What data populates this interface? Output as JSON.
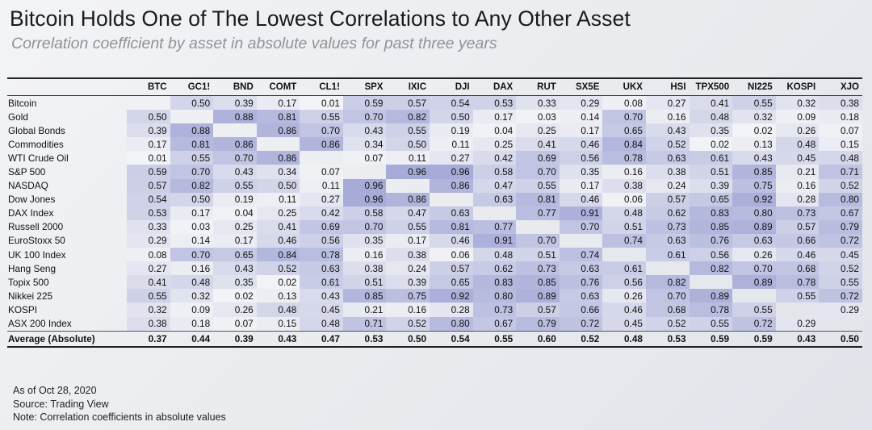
{
  "title": "Bitcoin Holds One of The Lowest Correlations to Any Other Asset",
  "subtitle": "Correlation coefficient by asset in absolute values for past three years",
  "chart_data": {
    "type": "heatmap",
    "columns": [
      "BTC",
      "GC1!",
      "BND",
      "COMT",
      "CL1!",
      "SPX",
      "IXIC",
      "DJI",
      "DAX",
      "RUT",
      "SX5E",
      "UKX",
      "HSI",
      "TPX500",
      "NI225",
      "KOSPI",
      "XJO"
    ],
    "rows": [
      {
        "label": "Bitcoin",
        "values": [
          null,
          "0.50",
          "0.39",
          "0.17",
          "0.01",
          "0.59",
          "0.57",
          "0.54",
          "0.53",
          "0.33",
          "0.29",
          "0.08",
          "0.27",
          "0.41",
          "0.55",
          "0.32",
          "0.38"
        ]
      },
      {
        "label": "Gold",
        "values": [
          "0.50",
          null,
          "0.88",
          "0.81",
          "0.55",
          "0.70",
          "0.82",
          "0.50",
          "0.17",
          "0.03",
          "0.14",
          "0.70",
          "0.16",
          "0.48",
          "0.32",
          "0.09",
          "0.18"
        ]
      },
      {
        "label": "Global Bonds",
        "values": [
          "0.39",
          "0.88",
          null,
          "0.86",
          "0.70",
          "0.43",
          "0.55",
          "0.19",
          "0.04",
          "0.25",
          "0.17",
          "0.65",
          "0.43",
          "0.35",
          "0.02",
          "0.26",
          "0.07"
        ]
      },
      {
        "label": "Commodities",
        "values": [
          "0.17",
          "0.81",
          "0.86",
          null,
          "0.86",
          "0.34",
          "0.50",
          "0.11",
          "0.25",
          "0.41",
          "0.46",
          "0.84",
          "0.52",
          "0.02",
          "0.13",
          "0.48",
          "0.15"
        ]
      },
      {
        "label": "WTI Crude Oil",
        "values": [
          "0.01",
          "0.55",
          "0.70",
          "0.86",
          null,
          "0.07",
          "0.11",
          "0.27",
          "0.42",
          "0.69",
          "0.56",
          "0.78",
          "0.63",
          "0.61",
          "0.43",
          "0.45",
          "0.48"
        ]
      },
      {
        "label": "S&P 500",
        "values": [
          "0.59",
          "0.70",
          "0.43",
          "0.34",
          "0.07",
          null,
          "0.96",
          "0.96",
          "0.58",
          "0.70",
          "0.35",
          "0.16",
          "0.38",
          "0.51",
          "0.85",
          "0.21",
          "0.71"
        ]
      },
      {
        "label": "NASDAQ",
        "values": [
          "0.57",
          "0.82",
          "0.55",
          "0.50",
          "0.11",
          "0.96",
          null,
          "0.86",
          "0.47",
          "0.55",
          "0.17",
          "0.38",
          "0.24",
          "0.39",
          "0.75",
          "0.16",
          "0.52"
        ]
      },
      {
        "label": "Dow Jones",
        "values": [
          "0.54",
          "0.50",
          "0.19",
          "0.11",
          "0.27",
          "0.96",
          "0.86",
          null,
          "0.63",
          "0.81",
          "0.46",
          "0.06",
          "0.57",
          "0.65",
          "0.92",
          "0.28",
          "0.80"
        ]
      },
      {
        "label": "DAX Index",
        "values": [
          "0.53",
          "0.17",
          "0.04",
          "0.25",
          "0.42",
          "0.58",
          "0.47",
          "0.63",
          null,
          "0.77",
          "0.91",
          "0.48",
          "0.62",
          "0.83",
          "0.80",
          "0.73",
          "0.67"
        ]
      },
      {
        "label": "Russell 2000",
        "values": [
          "0.33",
          "0.03",
          "0.25",
          "0.41",
          "0.69",
          "0.70",
          "0.55",
          "0.81",
          "0.77",
          null,
          "0.70",
          "0.51",
          "0.73",
          "0.85",
          "0.89",
          "0.57",
          "0.79"
        ]
      },
      {
        "label": "EuroStoxx 50",
        "values": [
          "0.29",
          "0.14",
          "0.17",
          "0.46",
          "0.56",
          "0.35",
          "0.17",
          "0.46",
          "0.91",
          "0.70",
          null,
          "0.74",
          "0.63",
          "0.76",
          "0.63",
          "0.66",
          "0.72"
        ]
      },
      {
        "label": "UK 100 Index",
        "values": [
          "0.08",
          "0.70",
          "0.65",
          "0.84",
          "0.78",
          "0.16",
          "0.38",
          "0.06",
          "0.48",
          "0.51",
          "0.74",
          null,
          "0.61",
          "0.56",
          "0.26",
          "0.46",
          "0.45"
        ]
      },
      {
        "label": "Hang Seng",
        "values": [
          "0.27",
          "0.16",
          "0.43",
          "0.52",
          "0.63",
          "0.38",
          "0.24",
          "0.57",
          "0.62",
          "0.73",
          "0.63",
          "0.61",
          null,
          "0.82",
          "0.70",
          "0.68",
          "0.52"
        ]
      },
      {
        "label": "Topix 500",
        "values": [
          "0.41",
          "0.48",
          "0.35",
          "0.02",
          "0.61",
          "0.51",
          "0.39",
          "0.65",
          "0.83",
          "0.85",
          "0.76",
          "0.56",
          "0.82",
          null,
          "0.89",
          "0.78",
          "0.55"
        ]
      },
      {
        "label": "Nikkei 225",
        "values": [
          "0.55",
          "0.32",
          "0.02",
          "0.13",
          "0.43",
          "0.85",
          "0.75",
          "0.92",
          "0.80",
          "0.89",
          "0.63",
          "0.26",
          "0.70",
          "0.89",
          null,
          "0.55",
          "0.72"
        ]
      },
      {
        "label": "KOSPI",
        "values": [
          "0.32",
          "0.09",
          "0.26",
          "0.48",
          "0.45",
          "0.21",
          "0.16",
          "0.28",
          "0.73",
          "0.57",
          "0.66",
          "0.46",
          "0.68",
          "0.78",
          "0.55",
          null,
          "0.29"
        ]
      },
      {
        "label": "ASX 200 Index",
        "values": [
          "0.38",
          "0.18",
          "0.07",
          "0.15",
          "0.48",
          "0.71",
          "0.52",
          "0.80",
          "0.67",
          "0.79",
          "0.72",
          "0.45",
          "0.52",
          "0.55",
          "0.72",
          "0.29",
          null
        ]
      }
    ],
    "average": {
      "label": "Average (Absolute)",
      "values": [
        "0.37",
        "0.44",
        "0.39",
        "0.43",
        "0.47",
        "0.53",
        "0.50",
        "0.54",
        "0.55",
        "0.60",
        "0.52",
        "0.48",
        "0.53",
        "0.59",
        "0.59",
        "0.43",
        "0.50"
      ]
    },
    "color_scale": {
      "low": "#f2f3f6",
      "high": "#a2a7d6"
    }
  },
  "footer": {
    "as_of": "As of Oct 28, 2020",
    "source": "Source: Trading View",
    "note": "Note: Correlation coefficients in absolute values"
  }
}
